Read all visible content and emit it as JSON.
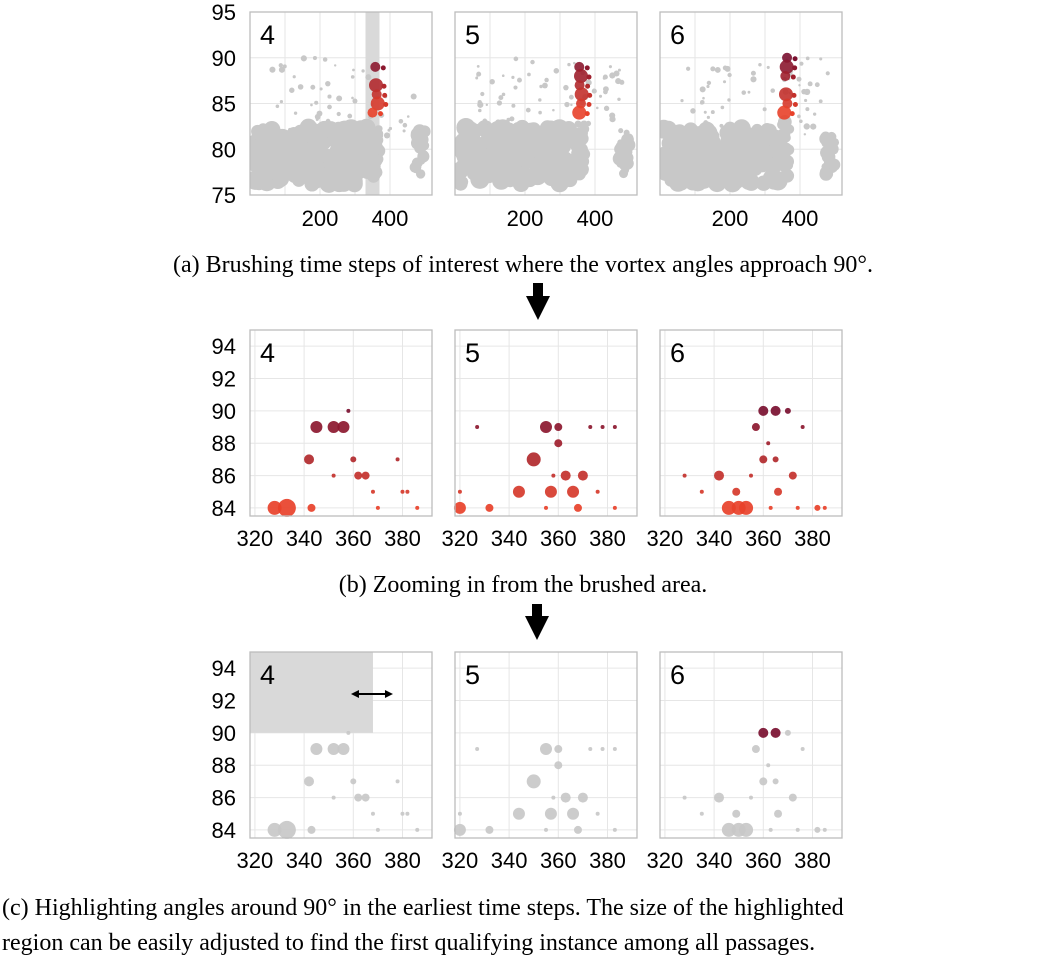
{
  "captions": {
    "a": "(a) Brushing time steps of interest where the vortex angles approach 90°.",
    "b": "(b) Zooming in from the brushed area.",
    "c_line1": "(c) Highlighting angles around 90° in the earliest time steps.  The size of the highlighted",
    "c_line2": "region can be easily adjusted to find the first qualifying instance among all passages."
  },
  "colors": {
    "grey": "#c8c8c8",
    "red_low": "#e8412a",
    "red_high": "#7a1030",
    "brush": "#d9d9d9",
    "frame": "#bdbdbd",
    "grid": "#e6e6e6"
  },
  "chart_data": [
    {
      "id": "a",
      "type": "scatter",
      "panels": [
        "4",
        "5",
        "6"
      ],
      "xticks": [
        200,
        400
      ],
      "yticks": [
        75,
        80,
        85,
        90,
        95
      ],
      "ylim": [
        75,
        95
      ],
      "brush_x": [
        330,
        370
      ],
      "highlighted_points": [
        {
          "panel": "4",
          "x": 358,
          "y": 89
        },
        {
          "panel": "4",
          "x": 360,
          "y": 87
        },
        {
          "panel": "4",
          "x": 362,
          "y": 86
        },
        {
          "panel": "4",
          "x": 365,
          "y": 85
        },
        {
          "panel": "4",
          "x": 350,
          "y": 84
        },
        {
          "panel": "5",
          "x": 355,
          "y": 89
        },
        {
          "panel": "5",
          "x": 360,
          "y": 88
        },
        {
          "panel": "5",
          "x": 356,
          "y": 87
        },
        {
          "panel": "5",
          "x": 362,
          "y": 86
        },
        {
          "panel": "5",
          "x": 360,
          "y": 85
        },
        {
          "panel": "5",
          "x": 355,
          "y": 84
        },
        {
          "panel": "6",
          "x": 363,
          "y": 90
        },
        {
          "panel": "6",
          "x": 362,
          "y": 89
        },
        {
          "panel": "6",
          "x": 358,
          "y": 88
        },
        {
          "panel": "6",
          "x": 360,
          "y": 86
        },
        {
          "panel": "6",
          "x": 364,
          "y": 85
        },
        {
          "panel": "6",
          "x": 355,
          "y": 84
        }
      ]
    },
    {
      "id": "b",
      "type": "scatter",
      "panels": [
        "4",
        "5",
        "6"
      ],
      "xticks": [
        320,
        340,
        360,
        380
      ],
      "yticks": [
        84,
        86,
        88,
        90,
        92,
        94
      ],
      "xlim": [
        318,
        392
      ],
      "ylim": [
        83.5,
        95
      ],
      "points": {
        "4": [
          {
            "x": 328,
            "y": 84,
            "s": 7
          },
          {
            "x": 333,
            "y": 84,
            "s": 9
          },
          {
            "x": 343,
            "y": 84,
            "s": 4
          },
          {
            "x": 345,
            "y": 89,
            "s": 6
          },
          {
            "x": 352,
            "y": 89,
            "s": 6
          },
          {
            "x": 356,
            "y": 89,
            "s": 6
          },
          {
            "x": 358,
            "y": 90,
            "s": 2
          },
          {
            "x": 342,
            "y": 87,
            "s": 5
          },
          {
            "x": 352,
            "y": 86,
            "s": 2
          },
          {
            "x": 360,
            "y": 87,
            "s": 3
          },
          {
            "x": 362,
            "y": 86,
            "s": 4
          },
          {
            "x": 365,
            "y": 86,
            "s": 4
          },
          {
            "x": 368,
            "y": 85,
            "s": 2
          },
          {
            "x": 370,
            "y": 84,
            "s": 2
          },
          {
            "x": 378,
            "y": 87,
            "s": 2
          },
          {
            "x": 380,
            "y": 85,
            "s": 2
          },
          {
            "x": 382,
            "y": 85,
            "s": 2
          },
          {
            "x": 386,
            "y": 84,
            "s": 2
          }
        ],
        "5": [
          {
            "x": 320,
            "y": 84,
            "s": 6
          },
          {
            "x": 320,
            "y": 85,
            "s": 2
          },
          {
            "x": 332,
            "y": 84,
            "s": 4
          },
          {
            "x": 327,
            "y": 89,
            "s": 2
          },
          {
            "x": 344,
            "y": 85,
            "s": 6
          },
          {
            "x": 350,
            "y": 87,
            "s": 7
          },
          {
            "x": 355,
            "y": 89,
            "s": 6
          },
          {
            "x": 360,
            "y": 89,
            "s": 4
          },
          {
            "x": 360,
            "y": 88,
            "s": 4
          },
          {
            "x": 358,
            "y": 86,
            "s": 2
          },
          {
            "x": 357,
            "y": 85,
            "s": 6
          },
          {
            "x": 355,
            "y": 84,
            "s": 2
          },
          {
            "x": 363,
            "y": 86,
            "s": 5
          },
          {
            "x": 366,
            "y": 85,
            "s": 6
          },
          {
            "x": 370,
            "y": 86,
            "s": 5
          },
          {
            "x": 368,
            "y": 84,
            "s": 4
          },
          {
            "x": 373,
            "y": 89,
            "s": 2
          },
          {
            "x": 378,
            "y": 89,
            "s": 2
          },
          {
            "x": 383,
            "y": 89,
            "s": 2
          },
          {
            "x": 376,
            "y": 85,
            "s": 2
          },
          {
            "x": 383,
            "y": 84,
            "s": 2
          }
        ],
        "6": [
          {
            "x": 328,
            "y": 86,
            "s": 2
          },
          {
            "x": 335,
            "y": 85,
            "s": 2
          },
          {
            "x": 342,
            "y": 86,
            "s": 5
          },
          {
            "x": 346,
            "y": 84,
            "s": 7
          },
          {
            "x": 350,
            "y": 84,
            "s": 7
          },
          {
            "x": 353,
            "y": 84,
            "s": 7
          },
          {
            "x": 349,
            "y": 85,
            "s": 4
          },
          {
            "x": 355,
            "y": 86,
            "s": 2
          },
          {
            "x": 357,
            "y": 89,
            "s": 4
          },
          {
            "x": 360,
            "y": 90,
            "s": 5
          },
          {
            "x": 365,
            "y": 90,
            "s": 5
          },
          {
            "x": 370,
            "y": 90,
            "s": 3
          },
          {
            "x": 360,
            "y": 87,
            "s": 4
          },
          {
            "x": 365,
            "y": 87,
            "s": 3
          },
          {
            "x": 362,
            "y": 88,
            "s": 2
          },
          {
            "x": 366,
            "y": 85,
            "s": 4
          },
          {
            "x": 363,
            "y": 84,
            "s": 2
          },
          {
            "x": 372,
            "y": 86,
            "s": 4
          },
          {
            "x": 374,
            "y": 84,
            "s": 2
          },
          {
            "x": 376,
            "y": 89,
            "s": 2
          },
          {
            "x": 382,
            "y": 84,
            "s": 3
          },
          {
            "x": 385,
            "y": 84,
            "s": 2
          }
        ]
      }
    },
    {
      "id": "c",
      "type": "scatter",
      "panels": [
        "4",
        "5",
        "6"
      ],
      "xticks": [
        320,
        340,
        360,
        380
      ],
      "yticks": [
        84,
        86,
        88,
        90,
        92,
        94
      ],
      "xlim": [
        318,
        392
      ],
      "ylim": [
        83.5,
        95
      ],
      "highlight_region": {
        "x": [
          318,
          368
        ],
        "y": [
          90,
          95
        ]
      },
      "highlighted_points": [
        {
          "panel": "6",
          "x": 360,
          "y": 90
        },
        {
          "panel": "6",
          "x": 365,
          "y": 90
        }
      ]
    }
  ]
}
